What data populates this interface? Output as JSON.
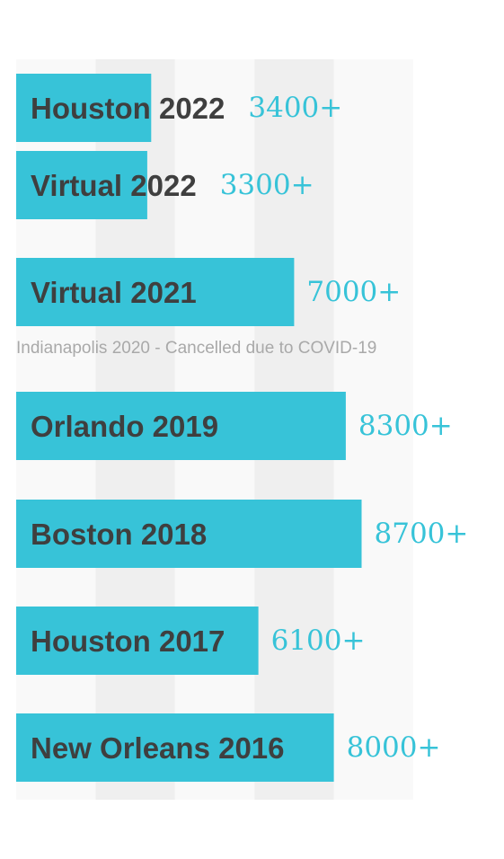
{
  "chart_data": {
    "type": "bar",
    "orientation": "horizontal",
    "bar_color": "#37c3d8",
    "label_color": "#3f3f3f",
    "value_color": "#37c3d8",
    "note_color": "#a9a9a9",
    "band_colors": [
      "#f9f9f9",
      "#efefef"
    ],
    "xlim": [
      0,
      10000
    ],
    "grid": "alternating vertical bands",
    "categories": [
      "Houston 2022",
      "Virtual 2022",
      "Virtual 2021",
      "Orlando 2019",
      "Boston 2018",
      "Houston 2017",
      "New Orleans 2016"
    ],
    "values": [
      3400,
      3300,
      7000,
      8300,
      8700,
      6100,
      8000
    ],
    "value_labels": [
      "3400+",
      "3300+",
      "7000+",
      "8300+",
      "8700+",
      "6100+",
      "8000+"
    ],
    "annotations": [
      "Indianapolis 2020 - Cancelled due to COVID-19"
    ]
  }
}
